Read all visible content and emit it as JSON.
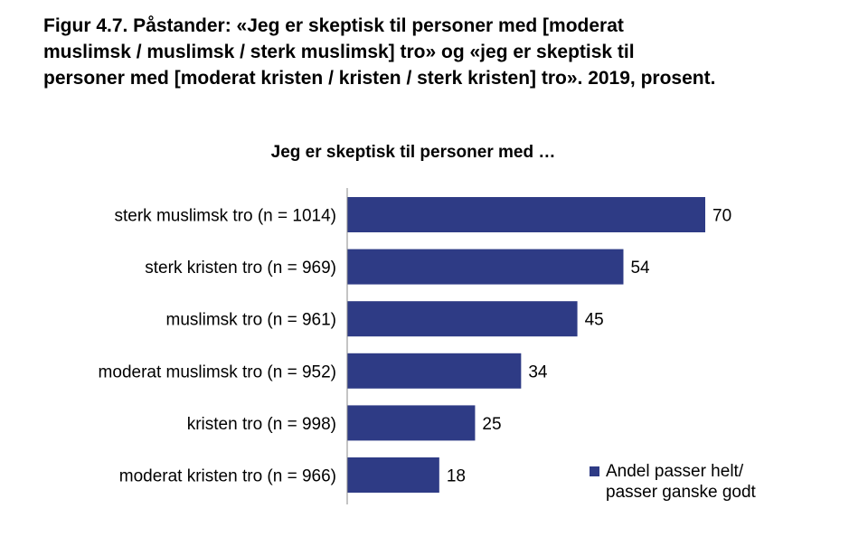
{
  "figure": {
    "title_lines": [
      "Figur 4.7. Påstander: «Jeg er skeptisk til personer med [moderat",
      "muslimsk / muslimsk / sterk muslimsk] tro» og «jeg er skeptisk til",
      "personer med [moderat kristen / kristen / sterk kristen] tro». 2019, prosent."
    ]
  },
  "chart_data": {
    "type": "bar",
    "orientation": "horizontal",
    "title": "Jeg er skeptisk til personer med …",
    "categories": [
      "sterk muslimsk tro (n = 1014)",
      "sterk kristen tro (n = 969)",
      "muslimsk tro (n = 961)",
      "moderat muslimsk tro (n = 952)",
      "kristen tro (n = 998)",
      "moderat kristen tro (n = 966)"
    ],
    "values": [
      70,
      54,
      45,
      34,
      25,
      18
    ],
    "value_labels": [
      "70",
      "54",
      "45",
      "34",
      "25",
      "18"
    ],
    "xlim": [
      0,
      70
    ],
    "series": [
      {
        "name": "Andel passer helt/ passer ganske godt",
        "legend_lines": [
          "Andel passer helt/",
          "passer ganske godt"
        ],
        "color": "#2e3b85"
      }
    ],
    "legend_position": "bottom-right",
    "grid": false
  }
}
